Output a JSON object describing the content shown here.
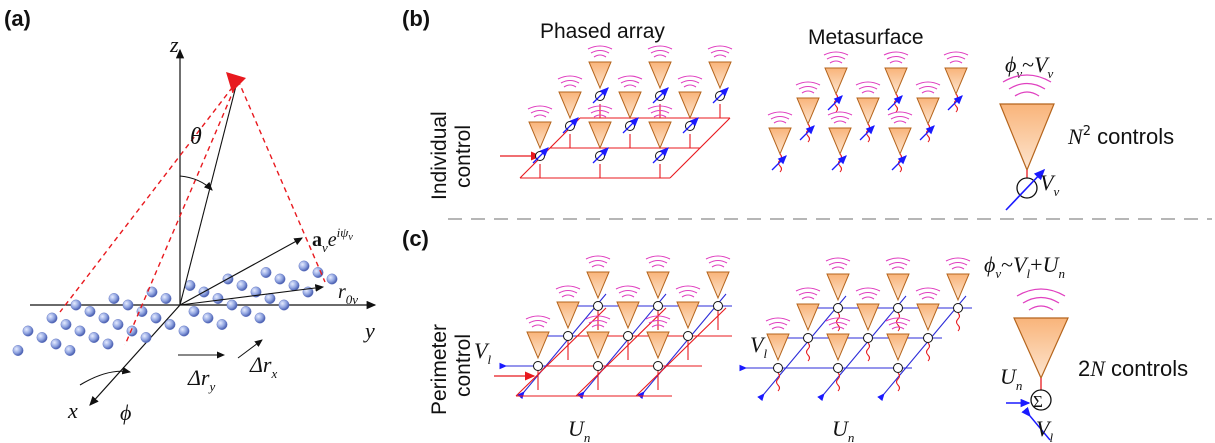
{
  "panel_a": {
    "label": "(a)",
    "z_axis": "z",
    "y_axis": "y",
    "x_axis": "x",
    "theta": "θ",
    "phi": "ϕ",
    "a_vec": "a",
    "a_sub": "v",
    "a_exp": "e",
    "a_exp_sup": "iψ",
    "a_exp_sup_sub": "ν",
    "r_label": "r",
    "r_sub": "0ν",
    "dry_delta": "Δr",
    "dry_sub": "y",
    "drx_delta": "Δr",
    "drx_sub": "x"
  },
  "panel_b": {
    "label": "(b)",
    "title_left": "Phased array",
    "title_right": "Metasurface",
    "row_label_1": "Individual",
    "row_label_2": "control",
    "phi_eq": "ϕ",
    "phi_sub": "ν",
    "phi_tilde": "~",
    "phi_V": "V",
    "phi_V_sub": "ν",
    "controls_N": "N",
    "controls_sup": "2",
    "controls_text": " controls",
    "V_label": "V",
    "V_sub": "ν"
  },
  "panel_c": {
    "label": "(c)",
    "row_label_1": "Perimeter",
    "row_label_2": "control",
    "phi_eq": "ϕ",
    "phi_sub": "ν",
    "phi_tilde": "~",
    "V_l": "V",
    "V_l_sub": "l",
    "plus": "+",
    "U_n": "U",
    "U_n_sub": "n",
    "controls_prefix": "2",
    "controls_N": "N",
    "controls_text": " controls",
    "sum_symbol": "Σ",
    "left_V": "V",
    "left_V_sub": "l",
    "left_U": "U",
    "left_U_sub": "n",
    "mid_V": "V",
    "mid_V_sub": "l",
    "mid_U": "U",
    "mid_U_sub": "n",
    "sum_U": "U",
    "sum_U_sub": "n",
    "sum_V": "V",
    "sum_V_sub": "l"
  },
  "colors": {
    "feed_red": "#e8191e",
    "arrow_blue": "#1a1aff",
    "antenna_fill": "#f6c49a",
    "antenna_stroke": "#b5651d",
    "wave_magenta": "#e040c0",
    "dot_fill": "#8fa3e0",
    "dashed_red": "#e8191e",
    "grid_blue": "#2b2bd8"
  }
}
